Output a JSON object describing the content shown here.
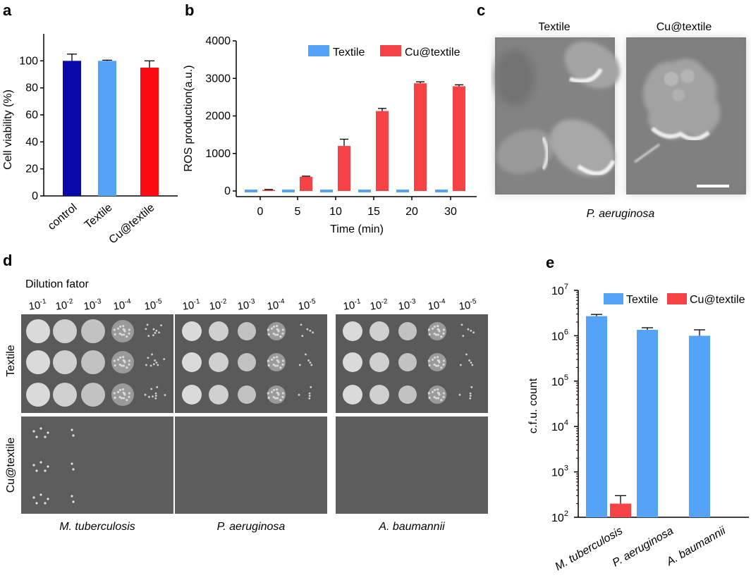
{
  "panels": {
    "a": "a",
    "b": "b",
    "c": "c",
    "d": "d",
    "e": "e"
  },
  "chart_data": [
    {
      "id": "a",
      "type": "bar",
      "ylabel": "Cell viability (%)",
      "ylim": [
        0,
        120
      ],
      "yticks": [
        0,
        20,
        40,
        60,
        80,
        100
      ],
      "categories": [
        "control",
        "Textile",
        "Cu@textile"
      ],
      "values": [
        100,
        100,
        95
      ],
      "errors": [
        5,
        0.5,
        5
      ],
      "colors": [
        "#0a0aa8",
        "#55a3f7",
        "#fb0a12"
      ]
    },
    {
      "id": "b",
      "type": "bar",
      "ylabel": "ROS production(a.u.)",
      "xlabel": "Time (min)",
      "ylim": [
        -100,
        4000
      ],
      "yticks": [
        0,
        1000,
        2000,
        3000,
        4000
      ],
      "categories": [
        "0",
        "5",
        "10",
        "15",
        "20",
        "30"
      ],
      "series": [
        {
          "name": "Textile",
          "color": "#55a3f7",
          "values": [
            0,
            0,
            0,
            0,
            0,
            0
          ],
          "errors": [
            0,
            0,
            0,
            0,
            0,
            0
          ]
        },
        {
          "name": "Cu@textile",
          "color": "#f74245",
          "values": [
            30,
            380,
            1200,
            2130,
            2870,
            2790
          ],
          "errors": [
            10,
            15,
            180,
            70,
            40,
            40
          ]
        }
      ],
      "legend": "top-right"
    },
    {
      "id": "e",
      "type": "bar",
      "ylabel": "c.f.u. count",
      "scale": "log",
      "ylim": [
        100,
        10000000
      ],
      "yticks": [
        "10^2",
        "10^3",
        "10^4",
        "10^5",
        "10^6",
        "10^7"
      ],
      "categories": [
        "M. tuberculosis",
        "P. aeruginosa",
        "A. baumannii"
      ],
      "series": [
        {
          "name": "Textile",
          "color": "#55a3f7",
          "values": [
            2700000,
            1350000,
            1000000
          ],
          "errors": [
            250000,
            150000,
            350000
          ]
        },
        {
          "name": "Cu@textile",
          "color": "#f74245",
          "values": [
            200,
            0,
            0
          ],
          "errors": [
            100,
            0,
            0
          ]
        }
      ],
      "legend": "top"
    }
  ],
  "micrographs": {
    "titles": [
      "Textile",
      "Cu@textile"
    ],
    "caption": "P. aeruginosa"
  },
  "plates": {
    "title": "Dilution fator",
    "dilutions": [
      "10-1",
      "10-2",
      "10-3",
      "10-4",
      "10-5"
    ],
    "row_labels": [
      "Textile",
      "Cu@textile"
    ],
    "organisms": [
      "M. tuberculosis",
      "P. aeruginosa",
      "A. baumannii"
    ]
  }
}
